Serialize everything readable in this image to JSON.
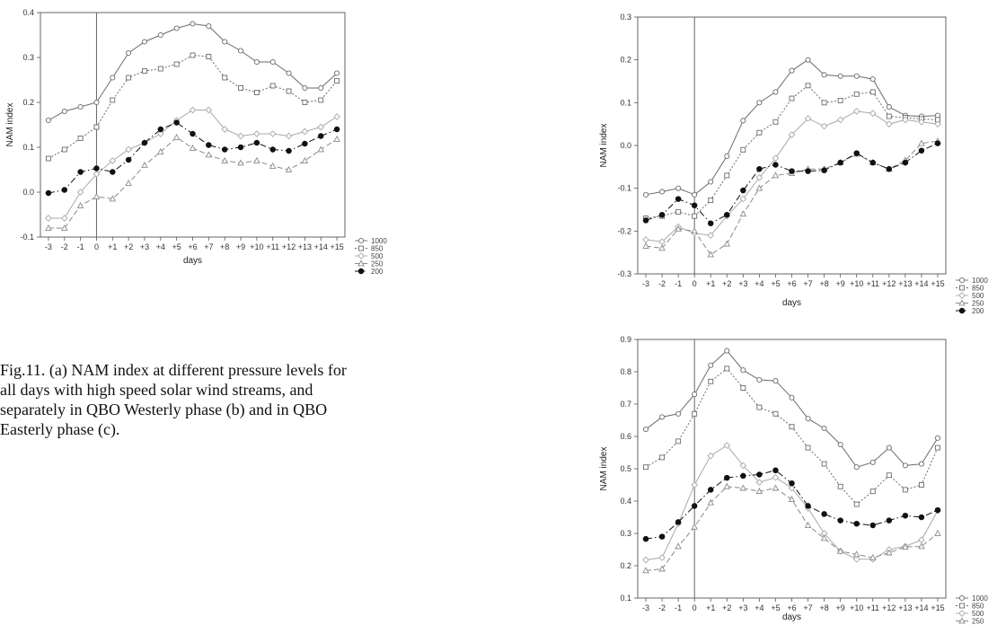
{
  "caption": "Fig.11. (a) NAM index at different pressure levels for all days with high speed solar wind streams, and separately in QBO Westerly phase (b) and in QBO Easterly phase (c).",
  "series_styles": [
    {
      "name": "1000",
      "color": "#6b6b6b",
      "dash": "",
      "marker": "circle-open"
    },
    {
      "name": "850",
      "color": "#6b6b6b",
      "dash": "2,2",
      "marker": "square-open"
    },
    {
      "name": "500",
      "color": "#a9a9a9",
      "dash": "",
      "marker": "diamond-open"
    },
    {
      "name": "250",
      "color": "#8a8a8a",
      "dash": "6,3",
      "marker": "triangle-open"
    },
    {
      "name": "200",
      "color": "#111111",
      "dash": "7,3,1.5,3",
      "marker": "circle-filled"
    }
  ],
  "chart_data": [
    {
      "id": "a",
      "type": "line",
      "xlabel": "days",
      "ylabel": "NAM index",
      "categories": [
        "-3",
        "-2",
        "-1",
        "0",
        "+1",
        "+2",
        "+3",
        "+4",
        "+5",
        "+6",
        "+7",
        "+8",
        "+9",
        "+10",
        "+11",
        "+12",
        "+13",
        "+14",
        "+15"
      ],
      "ylim": [
        -0.1,
        0.4
      ],
      "yticks": [
        "-0.1",
        "0.0",
        "0.1",
        "0.2",
        "0.3",
        "0.4"
      ],
      "vline_at": "0",
      "series": [
        {
          "name": "1000",
          "values": [
            0.16,
            0.18,
            0.19,
            0.2,
            0.255,
            0.31,
            0.335,
            0.35,
            0.365,
            0.375,
            0.37,
            0.335,
            0.315,
            0.29,
            0.29,
            0.265,
            0.232,
            0.232,
            0.265
          ]
        },
        {
          "name": "850",
          "values": [
            0.075,
            0.095,
            0.12,
            0.145,
            0.205,
            0.255,
            0.27,
            0.275,
            0.285,
            0.305,
            0.302,
            0.255,
            0.232,
            0.222,
            0.237,
            0.225,
            0.2,
            0.205,
            0.248
          ]
        },
        {
          "name": "500",
          "values": [
            -0.058,
            -0.058,
            0.0,
            0.04,
            0.07,
            0.095,
            0.11,
            0.13,
            0.16,
            0.183,
            0.183,
            0.14,
            0.125,
            0.13,
            0.13,
            0.125,
            0.135,
            0.145,
            0.168
          ]
        },
        {
          "name": "250",
          "values": [
            -0.08,
            -0.08,
            -0.03,
            -0.01,
            -0.015,
            0.02,
            0.06,
            0.09,
            0.122,
            0.098,
            0.083,
            0.07,
            0.065,
            0.07,
            0.058,
            0.05,
            0.07,
            0.095,
            0.118
          ]
        },
        {
          "name": "200",
          "values": [
            -0.002,
            0.005,
            0.045,
            0.053,
            0.045,
            0.072,
            0.11,
            0.14,
            0.155,
            0.13,
            0.105,
            0.095,
            0.1,
            0.11,
            0.095,
            0.092,
            0.108,
            0.125,
            0.14
          ]
        }
      ]
    },
    {
      "id": "b",
      "type": "line",
      "xlabel": "days",
      "ylabel": "NAM index",
      "categories": [
        "-3",
        "-2",
        "-1",
        "0",
        "+1",
        "+2",
        "+3",
        "+4",
        "+5",
        "+6",
        "+7",
        "+8",
        "+9",
        "+10",
        "+11",
        "+12",
        "+13",
        "+14",
        "+15"
      ],
      "ylim": [
        -0.3,
        0.3
      ],
      "yticks": [
        "-0.3",
        "-0.2",
        "-0.1",
        "0.0",
        "0.1",
        "0.2",
        "0.3"
      ],
      "vline_at": "0",
      "series": [
        {
          "name": "1000",
          "values": [
            -0.115,
            -0.108,
            -0.1,
            -0.115,
            -0.085,
            -0.025,
            0.058,
            0.1,
            0.125,
            0.175,
            0.2,
            0.165,
            0.162,
            0.162,
            0.155,
            0.09,
            0.07,
            0.068,
            0.07
          ]
        },
        {
          "name": "850",
          "values": [
            -0.17,
            -0.165,
            -0.155,
            -0.165,
            -0.128,
            -0.07,
            -0.01,
            0.03,
            0.055,
            0.11,
            0.14,
            0.1,
            0.105,
            0.12,
            0.125,
            0.068,
            0.065,
            0.062,
            0.06
          ]
        },
        {
          "name": "500",
          "values": [
            -0.22,
            -0.225,
            -0.19,
            -0.205,
            -0.21,
            -0.165,
            -0.125,
            -0.075,
            -0.03,
            0.025,
            0.063,
            0.045,
            0.06,
            0.08,
            0.075,
            0.05,
            0.06,
            0.055,
            0.05
          ]
        },
        {
          "name": "250",
          "values": [
            -0.235,
            -0.24,
            -0.195,
            -0.2,
            -0.255,
            -0.23,
            -0.16,
            -0.1,
            -0.07,
            -0.065,
            -0.055,
            -0.055,
            -0.04,
            -0.02,
            -0.04,
            -0.055,
            -0.035,
            0.005,
            0.01
          ]
        },
        {
          "name": "200",
          "values": [
            -0.175,
            -0.162,
            -0.125,
            -0.14,
            -0.182,
            -0.162,
            -0.105,
            -0.055,
            -0.045,
            -0.06,
            -0.06,
            -0.058,
            -0.04,
            -0.018,
            -0.04,
            -0.055,
            -0.04,
            -0.012,
            0.005
          ]
        }
      ]
    },
    {
      "id": "c",
      "type": "line",
      "xlabel": "days",
      "ylabel": "NAM index",
      "categories": [
        "-3",
        "-2",
        "-1",
        "0",
        "+1",
        "+2",
        "+3",
        "+4",
        "+5",
        "+6",
        "+7",
        "+8",
        "+9",
        "+10",
        "+11",
        "+12",
        "+13",
        "+14",
        "+15"
      ],
      "ylim": [
        0.1,
        0.9
      ],
      "yticks": [
        "0.1",
        "0.2",
        "0.3",
        "0.4",
        "0.5",
        "0.6",
        "0.7",
        "0.8",
        "0.9"
      ],
      "vline_at": "0",
      "series": [
        {
          "name": "1000",
          "values": [
            0.622,
            0.66,
            0.67,
            0.73,
            0.82,
            0.865,
            0.805,
            0.775,
            0.772,
            0.72,
            0.655,
            0.625,
            0.575,
            0.505,
            0.52,
            0.565,
            0.51,
            0.515,
            0.595
          ]
        },
        {
          "name": "850",
          "values": [
            0.505,
            0.535,
            0.585,
            0.67,
            0.77,
            0.81,
            0.75,
            0.69,
            0.67,
            0.63,
            0.565,
            0.515,
            0.445,
            0.39,
            0.43,
            0.48,
            0.435,
            0.45,
            0.565
          ]
        },
        {
          "name": "500",
          "values": [
            0.218,
            0.225,
            0.33,
            0.45,
            0.54,
            0.572,
            0.51,
            0.458,
            0.473,
            0.44,
            0.378,
            0.3,
            0.245,
            0.22,
            0.22,
            0.25,
            0.26,
            0.28,
            0.37
          ]
        },
        {
          "name": "250",
          "values": [
            0.185,
            0.19,
            0.26,
            0.32,
            0.395,
            0.445,
            0.44,
            0.43,
            0.44,
            0.405,
            0.325,
            0.285,
            0.245,
            0.235,
            0.225,
            0.24,
            0.258,
            0.26,
            0.3
          ]
        },
        {
          "name": "200",
          "values": [
            0.283,
            0.29,
            0.335,
            0.385,
            0.435,
            0.472,
            0.478,
            0.482,
            0.495,
            0.455,
            0.385,
            0.36,
            0.34,
            0.33,
            0.325,
            0.34,
            0.355,
            0.35,
            0.372
          ]
        }
      ]
    }
  ]
}
